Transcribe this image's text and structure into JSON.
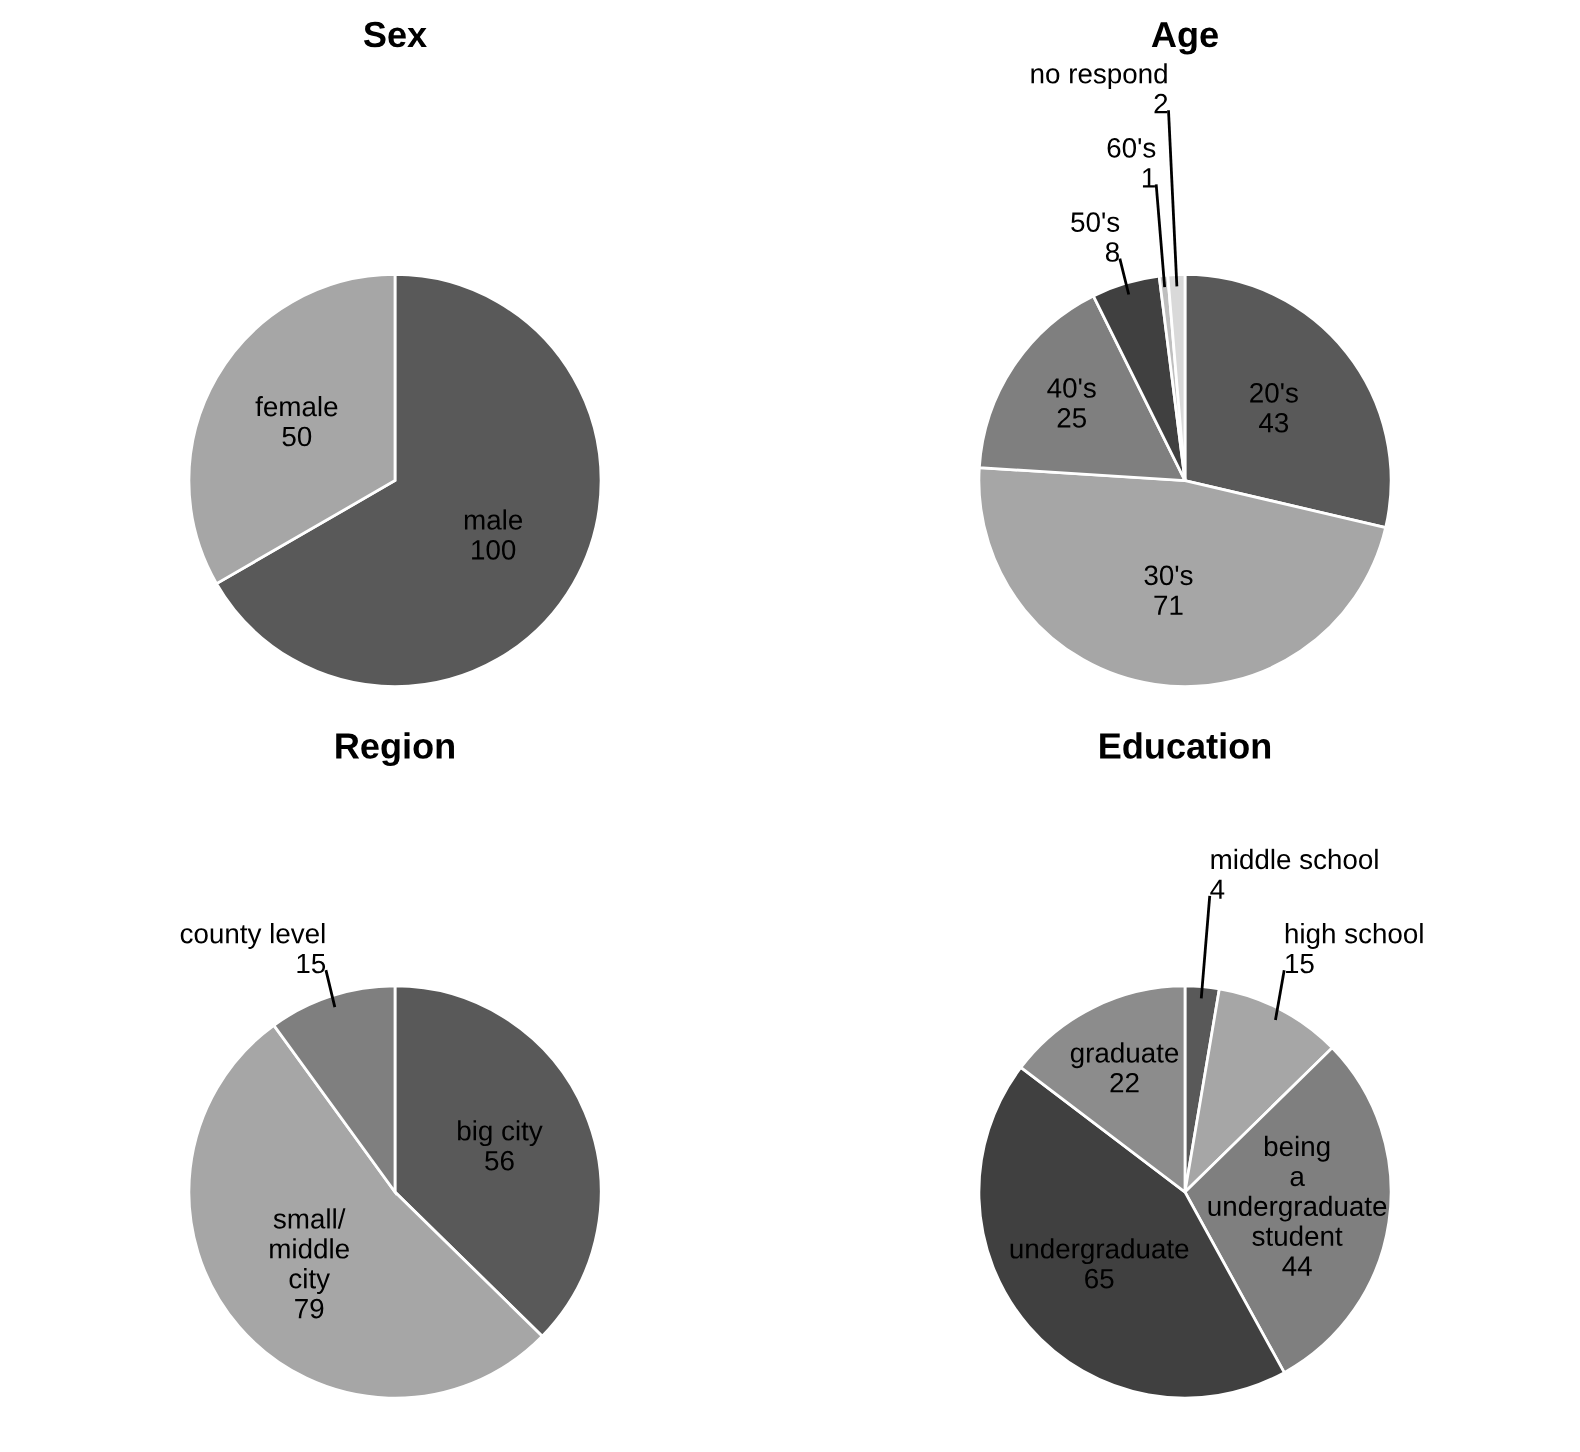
{
  "chart_data": [
    {
      "type": "pie",
      "title": "Sex",
      "categories": [
        "male",
        "female"
      ],
      "values": [
        100,
        50
      ],
      "colors": [
        "#595959",
        "#a6a6a6"
      ],
      "data_labels": true
    },
    {
      "type": "pie",
      "title": "Age",
      "categories": [
        "20's",
        "30's",
        "40's",
        "50's",
        "60's",
        "no respond"
      ],
      "values": [
        43,
        71,
        25,
        8,
        1,
        2
      ],
      "colors": [
        "#595959",
        "#a6a6a6",
        "#7f7f7f",
        "#404040",
        "#bfbfbf",
        "#d9d9d9"
      ],
      "data_labels": true
    },
    {
      "type": "pie",
      "title": "Region",
      "categories": [
        "big city",
        "small/ middle city",
        "county level"
      ],
      "values": [
        56,
        79,
        15
      ],
      "colors": [
        "#595959",
        "#a6a6a6",
        "#7f7f7f"
      ],
      "data_labels": true
    },
    {
      "type": "pie",
      "title": "Education",
      "categories": [
        "middle school",
        "high school",
        "being a undergraduate student",
        "undergraduate",
        "graduate"
      ],
      "values": [
        4,
        15,
        44,
        65,
        22
      ],
      "colors": [
        "#595959",
        "#a6a6a6",
        "#7f7f7f",
        "#404040",
        "#8c8c8c"
      ],
      "data_labels": true
    }
  ]
}
